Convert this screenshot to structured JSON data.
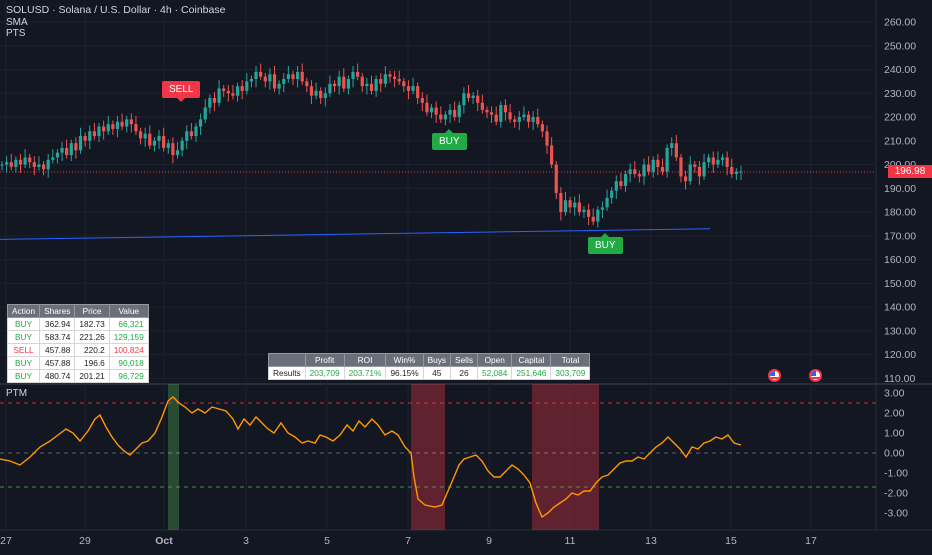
{
  "header": {
    "title": "SOLUSD · Solana / U.S. Dollar · 4h · Coinbase",
    "indicator1": "SMA",
    "indicator2": "PTS"
  },
  "price_axis": {
    "labels": [
      "260.00",
      "250.00",
      "240.00",
      "230.00",
      "220.00",
      "210.00",
      "200.00",
      "190.00",
      "180.00",
      "170.00",
      "160.00",
      "150.00",
      "140.00",
      "130.00",
      "120.00",
      "110.00"
    ],
    "current_price": "196.98"
  },
  "ptm_panel": {
    "label": "PTM",
    "axis_labels": [
      "3.00",
      "2.00",
      "1.00",
      "0.00",
      "-1.00",
      "-2.00",
      "-3.00"
    ]
  },
  "time_axis": {
    "labels": [
      "27",
      "29",
      "Oct",
      "3",
      "5",
      "7",
      "9",
      "11",
      "13",
      "15",
      "17"
    ]
  },
  "signals": {
    "sell": "SELL",
    "buy1": "BUY",
    "buy2": "BUY"
  },
  "trades_table": {
    "headers": [
      "Action",
      "Shares",
      "Price",
      "Value"
    ],
    "rows": [
      [
        "BUY",
        "362.94",
        "182.73",
        "66,321"
      ],
      [
        "BUY",
        "583.74",
        "221.26",
        "129,159"
      ],
      [
        "SELL",
        "457.88",
        "220.2",
        "100,824"
      ],
      [
        "BUY",
        "457.88",
        "196.6",
        "90,018"
      ],
      [
        "BUY",
        "480.74",
        "201.21",
        "96,729"
      ]
    ]
  },
  "results_table": {
    "headers": [
      "",
      "Profit",
      "ROI",
      "Win%",
      "Buys",
      "Sells",
      "Open",
      "Capital",
      "Total"
    ],
    "row": [
      "Results",
      "203,709",
      "203.71%",
      "96.15%",
      "45",
      "26",
      "52,084",
      "251,646",
      "303,709"
    ]
  },
  "colors": {
    "background": "#131722",
    "up": "#26a69a",
    "down": "#ef5350",
    "sma": "#2962ff",
    "ptm_line": "#ff9800",
    "buy": "#22ab45",
    "sell": "#f23645"
  }
}
